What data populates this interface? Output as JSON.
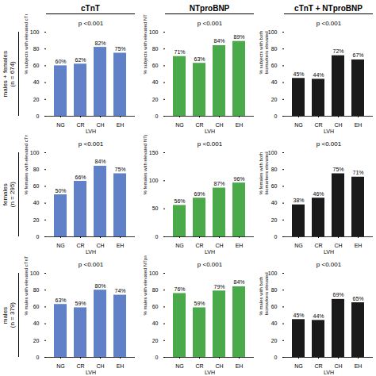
{
  "col_titles": [
    "cTnT",
    "NTproBNP",
    "cTnT + NTproBNP"
  ],
  "row_labels": [
    "males + females\n(n = 674)",
    "females\n(n = 295)",
    "males\n(n = 379)"
  ],
  "chart_data": [
    {
      "type": "bar",
      "title": "p <0.001",
      "xlabel": "LVH",
      "ylabel": "% subjects with elevated cTnT",
      "categories": [
        "NG",
        "CR",
        "CH",
        "EH"
      ],
      "values": [
        60,
        62,
        82,
        75
      ],
      "value_labels": [
        "60%",
        "62%",
        "82%",
        "75%"
      ],
      "color": "#6080c8",
      "ylim": [
        0,
        100
      ],
      "yticks": [
        0,
        20,
        40,
        60,
        80,
        100
      ],
      "data_labels": true
    },
    {
      "type": "bar",
      "title": "p <0.001",
      "xlabel": "LVH",
      "ylabel": "% subjects with elevated NTproBNP",
      "categories": [
        "NG",
        "CR",
        "CH",
        "EH"
      ],
      "values": [
        71,
        63,
        84,
        89
      ],
      "value_labels": [
        "71%",
        "63%",
        "84%",
        "89%"
      ],
      "color": "#4aaa4a",
      "ylim": [
        0,
        100
      ],
      "yticks": [
        0,
        20,
        40,
        60,
        80,
        100
      ],
      "data_labels": true
    },
    {
      "type": "bar",
      "title": "p <0.001",
      "xlabel": "LVH",
      "ylabel": "% subjects with both\nbiomarkers elevated",
      "categories": [
        "NG",
        "CR",
        "CH",
        "EH"
      ],
      "values": [
        45,
        44,
        72,
        67
      ],
      "value_labels": [
        "45%",
        "44%",
        "72%",
        "67%"
      ],
      "color": "#1a1a1a",
      "ylim": [
        0,
        100
      ],
      "yticks": [
        0,
        20,
        40,
        60,
        80,
        100
      ],
      "data_labels": true
    },
    {
      "type": "bar",
      "title": "p <0.001",
      "xlabel": "LVH",
      "ylabel": "% females with elevated cTnT",
      "categories": [
        "NG",
        "CR",
        "CH",
        "EH"
      ],
      "values": [
        50,
        66,
        84,
        75
      ],
      "value_labels": [
        "50%",
        "66%",
        "84%",
        "75%"
      ],
      "color": "#6080c8",
      "ylim": [
        0,
        100
      ],
      "yticks": [
        0,
        20,
        40,
        60,
        80,
        100
      ],
      "data_labels": true
    },
    {
      "type": "bar",
      "title": "p <0.001",
      "xlabel": "LVH",
      "ylabel": "% females with elevated NTproBNP",
      "categories": [
        "NG",
        "CR",
        "CH",
        "EH"
      ],
      "values": [
        56,
        69,
        87,
        96
      ],
      "value_labels": [
        "56%",
        "69%",
        "87%",
        "96%"
      ],
      "color": "#4aaa4a",
      "ylim": [
        0,
        150
      ],
      "yticks": [
        0,
        50,
        100,
        150
      ],
      "data_labels": true
    },
    {
      "type": "bar",
      "title": "p <0.001",
      "xlabel": "LVH",
      "ylabel": "% females with both\nbiomarkers elevated",
      "categories": [
        "NG",
        "CR",
        "CH",
        "EH"
      ],
      "values": [
        38,
        46,
        75,
        71
      ],
      "value_labels": [
        "38%",
        "46%",
        "75%",
        "71%"
      ],
      "color": "#1a1a1a",
      "ylim": [
        0,
        100
      ],
      "yticks": [
        0,
        20,
        40,
        60,
        80,
        100
      ],
      "data_labels": true
    },
    {
      "type": "bar",
      "title": "p <0.001",
      "xlabel": "LVH",
      "ylabel": "% males with elevated cTnT",
      "categories": [
        "NG",
        "CR",
        "CH",
        "EH"
      ],
      "values": [
        63,
        59,
        80,
        74
      ],
      "value_labels": [
        "63%",
        "59%",
        "80%",
        "74%"
      ],
      "color": "#6080c8",
      "ylim": [
        0,
        100
      ],
      "yticks": [
        0,
        20,
        40,
        60,
        80,
        100
      ],
      "data_labels": true
    },
    {
      "type": "bar",
      "title": "p <0.001",
      "xlabel": "LVH",
      "ylabel": "% males with elevated NTproBNP",
      "categories": [
        "NG",
        "CR",
        "CH",
        "EH"
      ],
      "values": [
        76,
        59,
        79,
        84
      ],
      "value_labels": [
        "76%",
        "59%",
        "79%",
        "84%"
      ],
      "color": "#4aaa4a",
      "ylim": [
        0,
        100
      ],
      "yticks": [
        0,
        20,
        40,
        60,
        80,
        100
      ],
      "data_labels": true
    },
    {
      "type": "bar",
      "title": "p <0.001",
      "xlabel": "LVH",
      "ylabel": "% males with both\nbiomarkers elevated",
      "categories": [
        "NG",
        "CR",
        "CH",
        "EH"
      ],
      "values": [
        45,
        44,
        69,
        65
      ],
      "value_labels": [
        "45%",
        "44%",
        "69%",
        "65%"
      ],
      "color": "#1a1a1a",
      "ylim": [
        0,
        100
      ],
      "yticks": [
        0,
        20,
        40,
        60,
        80,
        100
      ],
      "data_labels": true
    }
  ]
}
